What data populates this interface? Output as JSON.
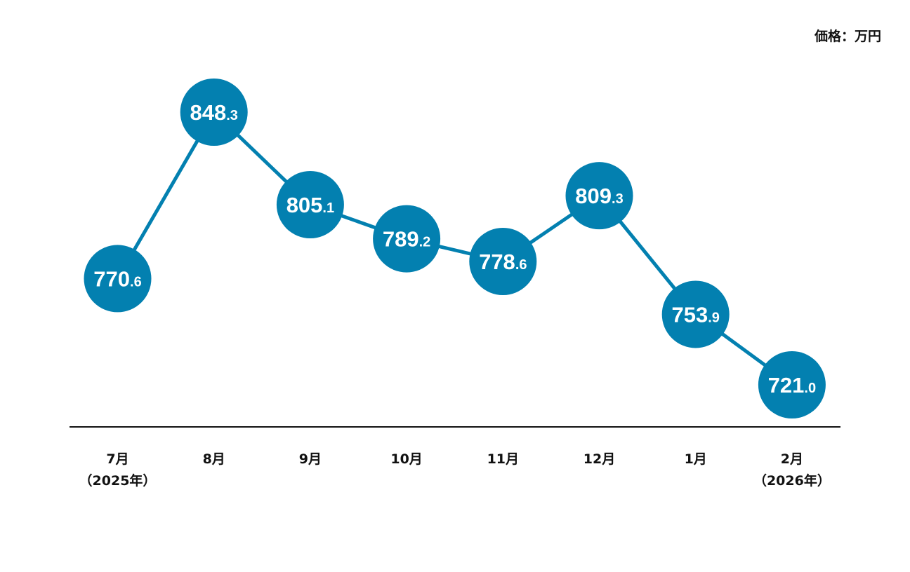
{
  "chart_data": {
    "type": "line",
    "unit_label": "価格：万円",
    "categories": [
      [
        "7月",
        "（2025年）"
      ],
      [
        "8月"
      ],
      [
        "9月"
      ],
      [
        "10月"
      ],
      [
        "11月"
      ],
      [
        "12月"
      ],
      [
        "1月"
      ],
      [
        "2月",
        "（2026年）"
      ]
    ],
    "series": [
      {
        "values": [
          770.6,
          848.3,
          805.1,
          789.2,
          778.6,
          809.3,
          753.9,
          721.0
        ]
      }
    ],
    "value_labels": [
      [
        "770",
        ".6"
      ],
      [
        "848",
        ".3"
      ],
      [
        "805",
        ".1"
      ],
      [
        "789",
        ".2"
      ],
      [
        "778",
        ".6"
      ],
      [
        "809",
        ".3"
      ],
      [
        "753",
        ".9"
      ],
      [
        "721",
        ".0"
      ]
    ],
    "ylim": [
      700,
      860
    ],
    "grid": false,
    "colors": {
      "series": "#0380b0",
      "label_text": "#ffffff",
      "axis": "#111111"
    }
  }
}
